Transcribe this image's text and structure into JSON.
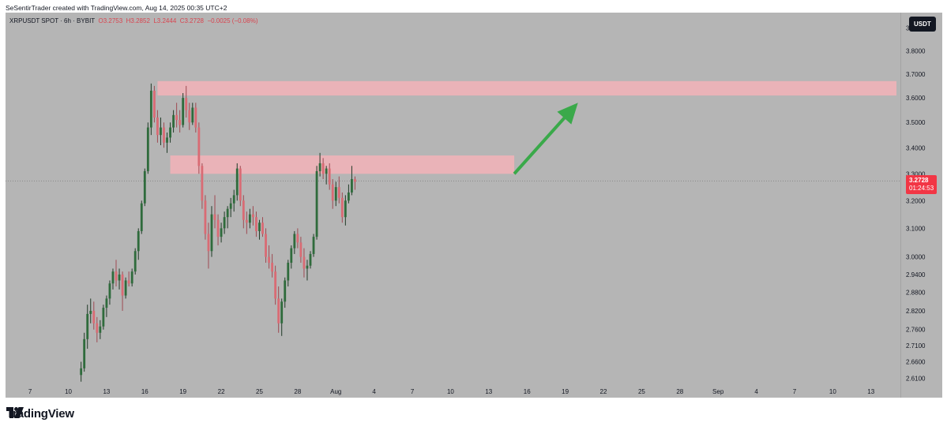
{
  "header": {
    "created_by": "SeSentirTrader created with TradingView.com, Aug 14, 2025 00:35 UTC+2"
  },
  "legend": {
    "symbol": "XRPUSDT SPOT · 6h · BYBIT",
    "open": "O3.2753",
    "high": "H3.2852",
    "low": "L3.2444",
    "close": "C3.2728",
    "change": "−0.0025 (−0.08%)"
  },
  "currency_badge": "USDT",
  "last_price": {
    "value": "3.2728",
    "countdown": "01:24:53"
  },
  "brand": {
    "name": "TradingView"
  },
  "colors": {
    "up": "#2f6b3c",
    "down": "#d96b74",
    "zone": "#f0b3b8",
    "arrow": "#3aa94a"
  },
  "chart_data": {
    "type": "candlestick",
    "y_scale": "log",
    "ylim": [
      2.59,
      3.97
    ],
    "y_ticks": [
      "3.9000",
      "3.8000",
      "3.7000",
      "3.6000",
      "3.5000",
      "3.4000",
      "3.3000",
      "3.2000",
      "3.1000",
      "3.0000",
      "2.9400",
      "2.8800",
      "2.8200",
      "2.7600",
      "2.7100",
      "2.6600",
      "2.6100"
    ],
    "x_ticks": [
      "7",
      "10",
      "13",
      "16",
      "19",
      "22",
      "25",
      "28",
      "Aug",
      "4",
      "7",
      "10",
      "13",
      "16",
      "19",
      "22",
      "25",
      "28",
      "Sep",
      "4",
      "7",
      "10",
      "13"
    ],
    "x_range": [
      "2025-07-06",
      "2025-09-13"
    ],
    "zones": [
      {
        "from_date": "2025-07-17",
        "to_date": "2025-09-13",
        "low": 3.61,
        "high": 3.67
      },
      {
        "from_date": "2025-07-18",
        "to_date": "2025-08-14",
        "low": 3.3,
        "high": 3.37
      }
    ],
    "arrow": {
      "from": [
        "2025-08-14",
        3.3
      ],
      "to": [
        "2025-08-19",
        3.58
      ]
    },
    "last_price": 3.2728,
    "candles_start": "2025-07-11",
    "candles_per_day": 4,
    "candles": [
      [
        2.62,
        2.66,
        2.6,
        2.64
      ],
      [
        2.64,
        2.75,
        2.63,
        2.73
      ],
      [
        2.73,
        2.84,
        2.7,
        2.81
      ],
      [
        2.81,
        2.86,
        2.78,
        2.82
      ],
      [
        2.82,
        2.85,
        2.76,
        2.78
      ],
      [
        2.78,
        2.8,
        2.72,
        2.75
      ],
      [
        2.75,
        2.79,
        2.73,
        2.77
      ],
      [
        2.77,
        2.84,
        2.76,
        2.83
      ],
      [
        2.83,
        2.87,
        2.8,
        2.86
      ],
      [
        2.86,
        2.92,
        2.84,
        2.91
      ],
      [
        2.91,
        2.96,
        2.89,
        2.95
      ],
      [
        2.95,
        2.99,
        2.9,
        2.92
      ],
      [
        2.92,
        2.96,
        2.89,
        2.94
      ],
      [
        2.94,
        2.95,
        2.82,
        2.87
      ],
      [
        2.87,
        2.93,
        2.86,
        2.92
      ],
      [
        2.92,
        2.95,
        2.9,
        2.91
      ],
      [
        2.91,
        2.96,
        2.9,
        2.95
      ],
      [
        2.95,
        3.03,
        2.94,
        3.02
      ],
      [
        3.02,
        3.1,
        2.99,
        3.09
      ],
      [
        3.09,
        3.2,
        3.08,
        3.19
      ],
      [
        3.19,
        3.32,
        3.18,
        3.31
      ],
      [
        3.31,
        3.5,
        3.3,
        3.48
      ],
      [
        3.48,
        3.66,
        3.45,
        3.63
      ],
      [
        3.63,
        3.65,
        3.5,
        3.52
      ],
      [
        3.52,
        3.55,
        3.42,
        3.45
      ],
      [
        3.45,
        3.52,
        3.41,
        3.48
      ],
      [
        3.48,
        3.5,
        3.4,
        3.42
      ],
      [
        3.42,
        3.46,
        3.38,
        3.44
      ],
      [
        3.44,
        3.5,
        3.42,
        3.48
      ],
      [
        3.48,
        3.55,
        3.46,
        3.53
      ],
      [
        3.53,
        3.58,
        3.48,
        3.51
      ],
      [
        3.51,
        3.55,
        3.46,
        3.49
      ],
      [
        3.49,
        3.62,
        3.48,
        3.6
      ],
      [
        3.6,
        3.65,
        3.52,
        3.55
      ],
      [
        3.55,
        3.58,
        3.47,
        3.5
      ],
      [
        3.5,
        3.58,
        3.49,
        3.56
      ],
      [
        3.56,
        3.58,
        3.46,
        3.48
      ],
      [
        3.48,
        3.5,
        3.3,
        3.33
      ],
      [
        3.33,
        3.34,
        3.17,
        3.2
      ],
      [
        3.2,
        3.22,
        3.06,
        3.08
      ],
      [
        3.08,
        3.12,
        2.96,
        3.02
      ],
      [
        3.02,
        3.18,
        3.0,
        3.15
      ],
      [
        3.15,
        3.22,
        3.1,
        3.13
      ],
      [
        3.13,
        3.15,
        3.04,
        3.07
      ],
      [
        3.07,
        3.12,
        3.05,
        3.1
      ],
      [
        3.1,
        3.16,
        3.08,
        3.14
      ],
      [
        3.14,
        3.18,
        3.1,
        3.17
      ],
      [
        3.17,
        3.21,
        3.14,
        3.19
      ],
      [
        3.19,
        3.24,
        3.16,
        3.22
      ],
      [
        3.22,
        3.34,
        3.2,
        3.32
      ],
      [
        3.32,
        3.33,
        3.18,
        3.2
      ],
      [
        3.2,
        3.22,
        3.1,
        3.13
      ],
      [
        3.13,
        3.16,
        3.08,
        3.12
      ],
      [
        3.12,
        3.17,
        3.1,
        3.15
      ],
      [
        3.15,
        3.18,
        3.11,
        3.14
      ],
      [
        3.14,
        3.16,
        3.07,
        3.09
      ],
      [
        3.09,
        3.13,
        3.06,
        3.12
      ],
      [
        3.12,
        3.14,
        3.07,
        3.08
      ],
      [
        3.08,
        3.1,
        2.98,
        3.0
      ],
      [
        3.0,
        3.04,
        2.96,
        2.98
      ],
      [
        2.98,
        3.01,
        2.93,
        2.95
      ],
      [
        2.95,
        2.97,
        2.84,
        2.86
      ],
      [
        2.86,
        2.9,
        2.75,
        2.78
      ],
      [
        2.78,
        2.86,
        2.74,
        2.85
      ],
      [
        2.85,
        2.93,
        2.83,
        2.92
      ],
      [
        2.92,
        2.99,
        2.9,
        2.98
      ],
      [
        2.98,
        3.04,
        2.96,
        3.03
      ],
      [
        3.03,
        3.09,
        3.01,
        3.08
      ],
      [
        3.08,
        3.1,
        3.03,
        3.05
      ],
      [
        3.05,
        3.07,
        2.98,
        3.0
      ],
      [
        3.0,
        3.03,
        2.93,
        2.96
      ],
      [
        2.96,
        2.99,
        2.92,
        2.97
      ],
      [
        2.97,
        3.02,
        2.96,
        3.01
      ],
      [
        3.01,
        3.08,
        3.0,
        3.07
      ],
      [
        3.07,
        3.33,
        3.06,
        3.31
      ],
      [
        3.31,
        3.38,
        3.29,
        3.34
      ],
      [
        3.34,
        3.36,
        3.28,
        3.3
      ],
      [
        3.3,
        3.33,
        3.26,
        3.32
      ],
      [
        3.32,
        3.34,
        3.24,
        3.26
      ],
      [
        3.26,
        3.28,
        3.17,
        3.2
      ],
      [
        3.2,
        3.27,
        3.18,
        3.25
      ],
      [
        3.25,
        3.29,
        3.19,
        3.21
      ],
      [
        3.21,
        3.23,
        3.12,
        3.14
      ],
      [
        3.14,
        3.22,
        3.11,
        3.2
      ],
      [
        3.2,
        3.26,
        3.19,
        3.23
      ],
      [
        3.23,
        3.33,
        3.22,
        3.28
      ],
      [
        3.28,
        3.29,
        3.24,
        3.27
      ]
    ]
  }
}
